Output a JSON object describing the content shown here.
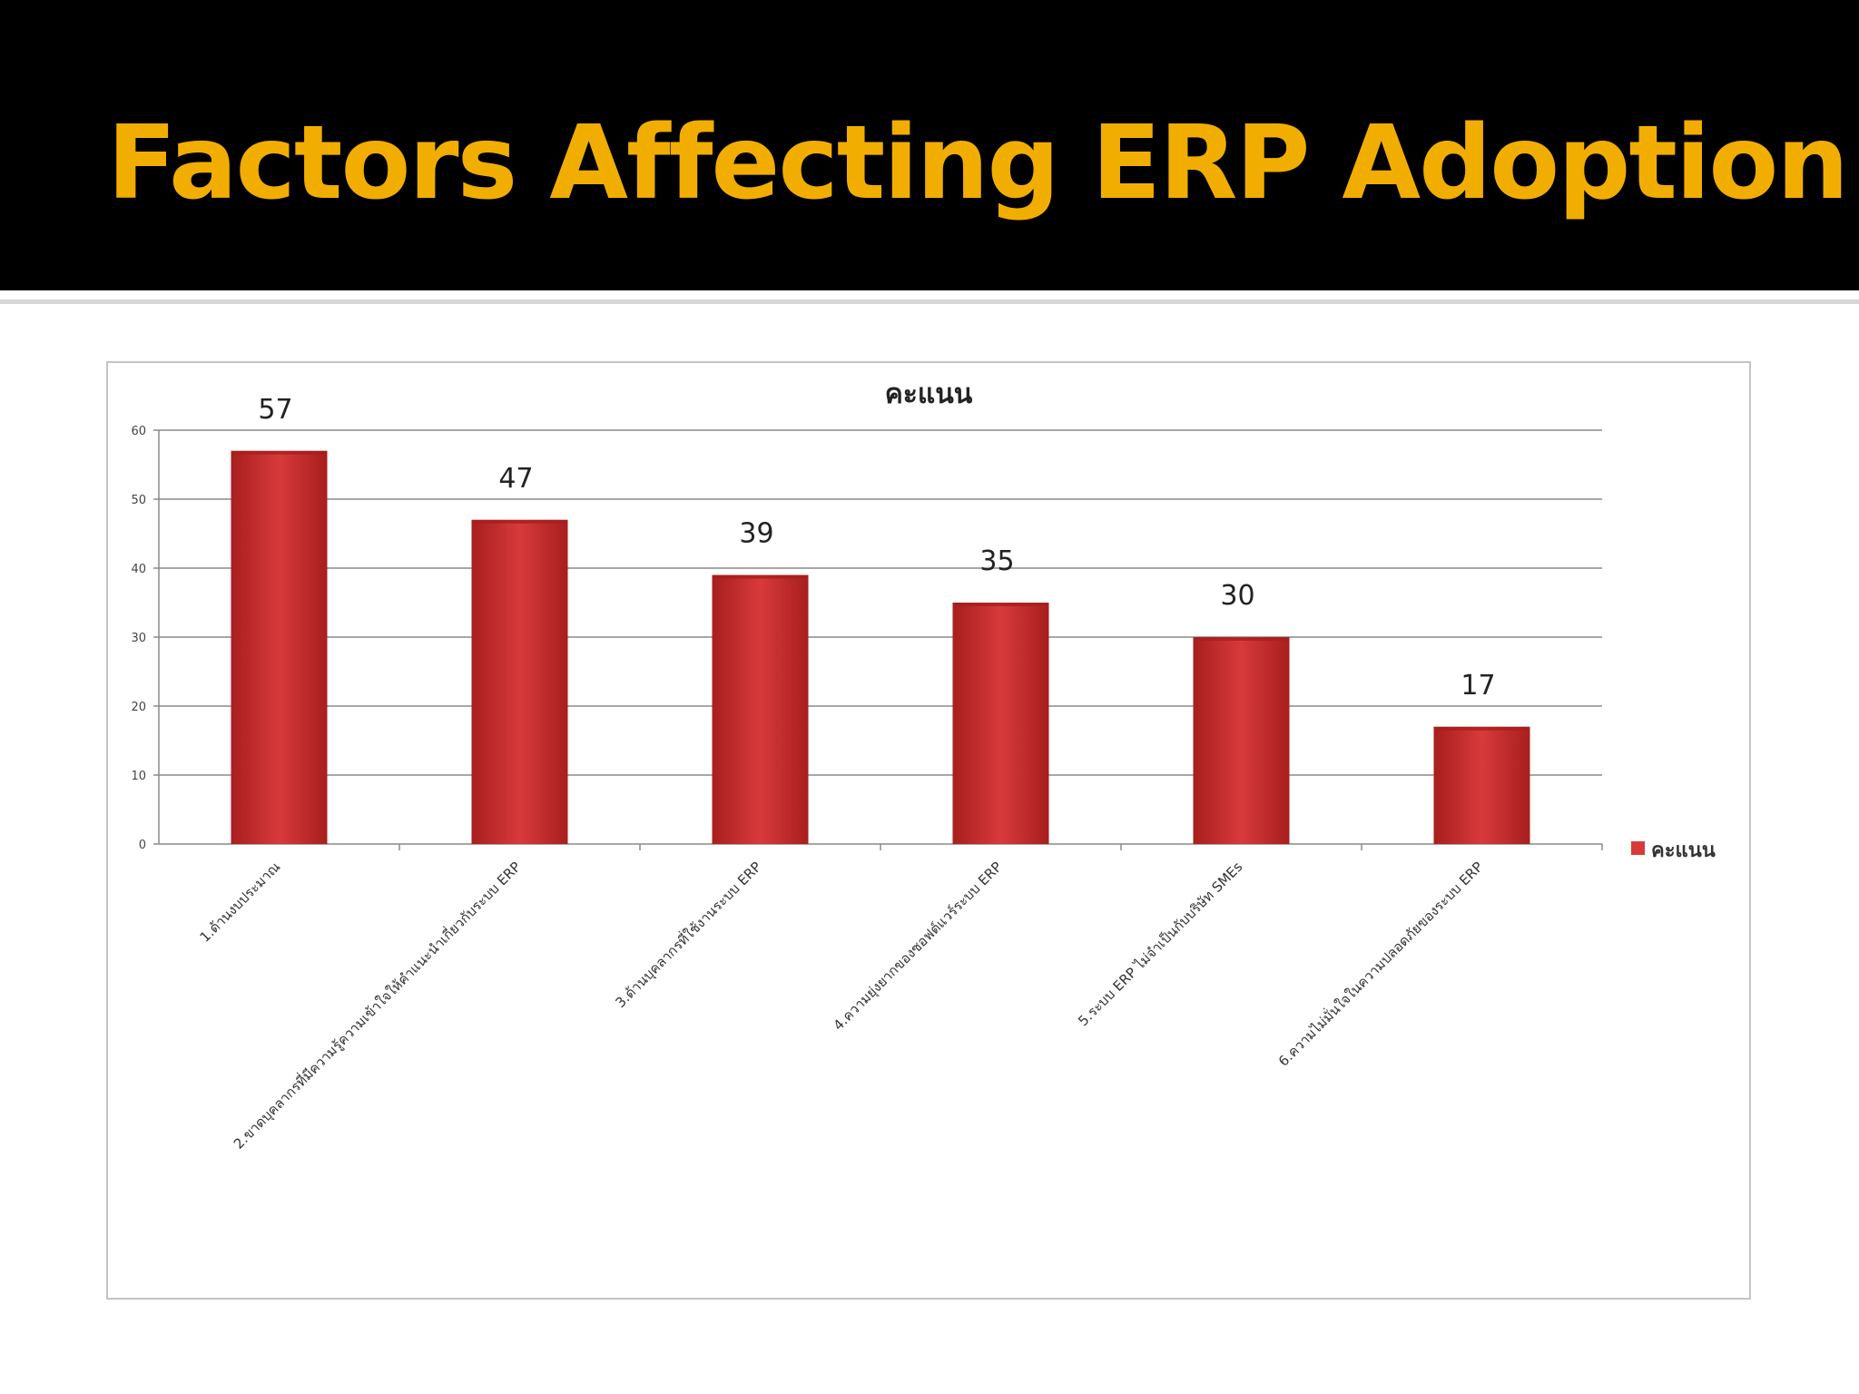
{
  "slide": {
    "title": "Factors Affecting ERP Adoption"
  },
  "colors": {
    "header_bg": "#000000",
    "title": "#F2AE00",
    "bar": "#D83A3A",
    "bar_dark": "#A81E1E",
    "gridline": "#8a8a8a"
  },
  "chart_data": {
    "type": "bar",
    "title": "คะแนน",
    "xlabel": "",
    "ylabel": "",
    "categories": [
      "1.ด้านงบประมาณ",
      "2.ขาดบุคลากรที่มีความรู้ความเข้าใจให้คำแนะนำเกี่ยวกับระบบ ERP",
      "3.ด้านบุคลากรที่ใช้งานระบบ ERP",
      "4.ความยุ่งยากของซอฟต์แวร์ระบบ ERP",
      "5.ระบบ ERP ไม่จำเป็นกับบริษัท SMEs",
      "6.ความไม่มั่นใจในความปลอดภัยของระบบ ERP"
    ],
    "series": [
      {
        "name": "คะแนน",
        "values": [
          57,
          47,
          39,
          35,
          30,
          17
        ]
      }
    ],
    "ylim": [
      0,
      60
    ],
    "yticks": [
      0,
      10,
      20,
      30,
      40,
      50,
      60
    ],
    "grid": true,
    "legend": "right",
    "data_labels": true
  }
}
